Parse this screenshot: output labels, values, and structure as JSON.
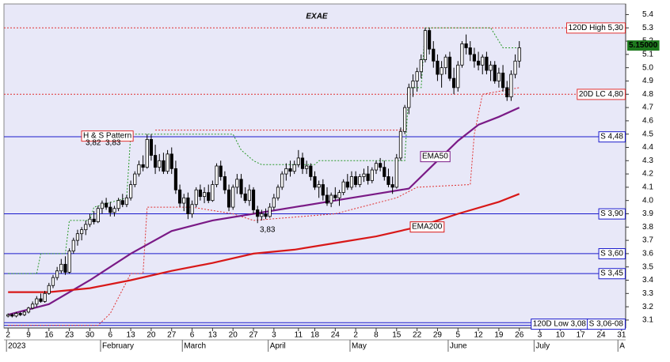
{
  "chart_data": {
    "type": "candlestick",
    "title": "EXAE",
    "title_color": "#1e9e1e",
    "background": "#e8e8f8",
    "up_color": "#ffffff",
    "down_color": "#000000",
    "xlim": [
      -1,
      151
    ],
    "ylim": [
      3.04,
      5.48
    ],
    "yticks": [
      3.1,
      3.2,
      3.3,
      3.4,
      3.5,
      3.6,
      3.7,
      3.8,
      3.9,
      {
        "value": 4,
        "label": "4.0"
      },
      4.1,
      4.2,
      4.3,
      4.4,
      4.5,
      4.6,
      4.7,
      4.8,
      4.9,
      {
        "value": 5,
        "label": "5.0"
      },
      5.1,
      5.2,
      5.3,
      5.4
    ],
    "xticks": [
      {
        "value": 0,
        "label": "2"
      },
      {
        "value": 5,
        "label": "9"
      },
      {
        "value": 10,
        "label": "16"
      },
      {
        "value": 15,
        "label": "23"
      },
      {
        "value": 20,
        "label": "30"
      },
      {
        "value": 25,
        "label": "6"
      },
      {
        "value": 30,
        "label": "13"
      },
      {
        "value": 35,
        "label": "20"
      },
      {
        "value": 40,
        "label": "27"
      },
      {
        "value": 45,
        "label": "6"
      },
      {
        "value": 50,
        "label": "13"
      },
      {
        "value": 55,
        "label": "20"
      },
      {
        "value": 60,
        "label": "27"
      },
      {
        "value": 65,
        "label": "3"
      },
      {
        "value": 71,
        "label": "11"
      },
      {
        "value": 75,
        "label": "18"
      },
      {
        "value": 80,
        "label": "24"
      },
      {
        "value": 85,
        "label": "2"
      },
      {
        "value": 90,
        "label": "8"
      },
      {
        "value": 95,
        "label": "15"
      },
      {
        "value": 100,
        "label": "22"
      },
      {
        "value": 105,
        "label": "29"
      },
      {
        "value": 110,
        "label": "5"
      },
      {
        "value": 115,
        "label": "12"
      },
      {
        "value": 120,
        "label": "19"
      },
      {
        "value": 125,
        "label": "26"
      },
      {
        "value": 130,
        "label": "3"
      },
      {
        "value": 135,
        "label": "10"
      },
      {
        "value": 140,
        "label": "17"
      },
      {
        "value": 145,
        "label": "24"
      },
      {
        "value": 150,
        "label": "31"
      }
    ],
    "month_labels": [
      {
        "value": 0,
        "label": "2023"
      },
      {
        "value": 23,
        "label": "February"
      },
      {
        "value": 43,
        "label": "March"
      },
      {
        "value": 64,
        "label": "April"
      },
      {
        "value": 84,
        "label": "May"
      },
      {
        "value": 108,
        "label": "June"
      },
      {
        "value": 129,
        "label": "July"
      },
      {
        "value": 149.5,
        "label": "A"
      }
    ],
    "ohlc": [
      [
        3.13,
        3.15,
        3.12,
        3.14
      ],
      [
        3.14,
        3.15,
        3.12,
        3.13
      ],
      [
        3.13,
        3.16,
        3.12,
        3.15
      ],
      [
        3.15,
        3.16,
        3.13,
        3.14
      ],
      [
        3.14,
        3.17,
        3.13,
        3.16
      ],
      [
        3.16,
        3.2,
        3.15,
        3.19
      ],
      [
        3.19,
        3.24,
        3.18,
        3.22
      ],
      [
        3.22,
        3.28,
        3.2,
        3.26
      ],
      [
        3.26,
        3.3,
        3.23,
        3.24
      ],
      [
        3.24,
        3.32,
        3.23,
        3.3
      ],
      [
        3.3,
        3.38,
        3.29,
        3.36
      ],
      [
        3.36,
        3.44,
        3.34,
        3.42
      ],
      [
        3.42,
        3.5,
        3.4,
        3.47
      ],
      [
        3.47,
        3.56,
        3.45,
        3.52
      ],
      [
        3.52,
        3.58,
        3.44,
        3.46
      ],
      [
        3.46,
        3.64,
        3.45,
        3.62
      ],
      [
        3.62,
        3.72,
        3.6,
        3.7
      ],
      [
        3.7,
        3.78,
        3.66,
        3.75
      ],
      [
        3.75,
        3.8,
        3.7,
        3.78
      ],
      [
        3.78,
        3.85,
        3.74,
        3.82
      ],
      [
        3.82,
        3.9,
        3.8,
        3.86
      ],
      [
        3.86,
        3.92,
        3.82,
        3.84
      ],
      [
        3.84,
        3.96,
        3.83,
        3.94
      ],
      [
        3.94,
        4.0,
        3.9,
        3.98
      ],
      [
        3.98,
        4.02,
        3.93,
        3.95
      ],
      [
        3.95,
        3.99,
        3.88,
        3.91
      ],
      [
        3.91,
        3.96,
        3.88,
        3.94
      ],
      [
        3.94,
        4.02,
        3.92,
        4.0
      ],
      [
        4.0,
        4.05,
        3.95,
        3.97
      ],
      [
        3.97,
        4.04,
        3.95,
        4.02
      ],
      [
        4.02,
        4.15,
        4.0,
        4.12
      ],
      [
        4.12,
        4.22,
        4.1,
        4.2
      ],
      [
        4.2,
        4.3,
        4.18,
        4.27
      ],
      [
        4.27,
        4.34,
        4.22,
        4.25
      ],
      [
        4.25,
        4.5,
        4.24,
        4.46
      ],
      [
        4.46,
        4.5,
        4.3,
        4.34
      ],
      [
        4.34,
        4.42,
        4.2,
        4.25
      ],
      [
        4.25,
        4.35,
        4.22,
        4.3
      ],
      [
        4.3,
        4.36,
        4.2,
        4.22
      ],
      [
        4.22,
        4.38,
        4.2,
        4.35
      ],
      [
        4.35,
        4.4,
        4.2,
        4.24
      ],
      [
        4.24,
        4.3,
        4.05,
        4.08
      ],
      [
        4.08,
        4.12,
        3.95,
        3.98
      ],
      [
        3.98,
        4.05,
        3.92,
        4.02
      ],
      [
        4.02,
        4.06,
        3.86,
        3.9
      ],
      [
        3.9,
        4.0,
        3.87,
        3.97
      ],
      [
        3.97,
        4.1,
        3.95,
        4.08
      ],
      [
        4.08,
        4.12,
        4.0,
        4.03
      ],
      [
        4.03,
        4.1,
        3.98,
        4.06
      ],
      [
        4.06,
        4.12,
        3.98,
        4.0
      ],
      [
        4.0,
        4.15,
        3.99,
        4.12
      ],
      [
        4.12,
        4.28,
        4.1,
        4.26
      ],
      [
        4.26,
        4.3,
        4.15,
        4.18
      ],
      [
        4.18,
        4.22,
        4.05,
        4.08
      ],
      [
        4.08,
        4.12,
        3.92,
        3.95
      ],
      [
        3.95,
        4.12,
        3.93,
        4.1
      ],
      [
        4.1,
        4.2,
        4.05,
        4.16
      ],
      [
        4.16,
        4.2,
        4.02,
        4.05
      ],
      [
        4.05,
        4.1,
        3.98,
        4.0
      ],
      [
        4.0,
        4.12,
        3.96,
        4.08
      ],
      [
        4.08,
        4.1,
        3.9,
        3.93
      ],
      [
        3.93,
        3.96,
        3.83,
        3.88
      ],
      [
        3.88,
        3.93,
        3.85,
        3.9
      ],
      [
        3.9,
        3.94,
        3.86,
        3.88
      ],
      [
        3.88,
        3.98,
        3.87,
        3.95
      ],
      [
        3.95,
        4.05,
        3.93,
        4.02
      ],
      [
        4.02,
        4.12,
        4.0,
        4.1
      ],
      [
        4.1,
        4.22,
        4.08,
        4.2
      ],
      [
        4.2,
        4.28,
        4.15,
        4.24
      ],
      [
        4.24,
        4.3,
        4.18,
        4.22
      ],
      [
        4.22,
        4.3,
        4.2,
        4.27
      ],
      [
        4.27,
        4.38,
        4.25,
        4.32
      ],
      [
        4.32,
        4.36,
        4.2,
        4.24
      ],
      [
        4.24,
        4.3,
        4.2,
        4.26
      ],
      [
        4.26,
        4.28,
        4.15,
        4.18
      ],
      [
        4.18,
        4.22,
        4.08,
        4.1
      ],
      [
        4.1,
        4.15,
        4.02,
        4.12
      ],
      [
        4.12,
        4.16,
        4.0,
        4.04
      ],
      [
        4.04,
        4.1,
        3.96,
        3.98
      ],
      [
        3.98,
        4.06,
        3.95,
        4.04
      ],
      [
        4.04,
        4.1,
        4.0,
        4.02
      ],
      [
        4.02,
        4.08,
        3.96,
        4.06
      ],
      [
        4.06,
        4.16,
        4.04,
        4.14
      ],
      [
        4.14,
        4.2,
        4.08,
        4.1
      ],
      [
        4.1,
        4.22,
        4.08,
        4.18
      ],
      [
        4.18,
        4.22,
        4.1,
        4.12
      ],
      [
        4.12,
        4.2,
        4.1,
        4.18
      ],
      [
        4.18,
        4.24,
        4.14,
        4.2
      ],
      [
        4.2,
        4.26,
        4.12,
        4.15
      ],
      [
        4.15,
        4.25,
        4.13,
        4.23
      ],
      [
        4.23,
        4.3,
        4.2,
        4.28
      ],
      [
        4.28,
        4.32,
        4.22,
        4.25
      ],
      [
        4.25,
        4.3,
        4.15,
        4.18
      ],
      [
        4.18,
        4.24,
        4.1,
        4.12
      ],
      [
        4.12,
        4.18,
        4.05,
        4.1
      ],
      [
        4.1,
        4.35,
        4.09,
        4.32
      ],
      [
        4.32,
        4.55,
        4.3,
        4.52
      ],
      [
        4.52,
        4.72,
        4.5,
        4.7
      ],
      [
        4.7,
        4.88,
        4.65,
        4.85
      ],
      [
        4.85,
        4.95,
        4.78,
        4.9
      ],
      [
        4.9,
        5.0,
        4.82,
        4.97
      ],
      [
        4.97,
        5.1,
        4.92,
        5.06
      ],
      [
        5.06,
        5.3,
        5.04,
        5.28
      ],
      [
        5.28,
        5.3,
        5.1,
        5.14
      ],
      [
        5.14,
        5.2,
        5.0,
        5.05
      ],
      [
        5.05,
        5.1,
        4.9,
        4.95
      ],
      [
        4.95,
        5.05,
        4.85,
        5.0
      ],
      [
        5.0,
        5.1,
        4.95,
        5.08
      ],
      [
        5.08,
        5.12,
        4.9,
        4.92
      ],
      [
        4.92,
        5.0,
        4.8,
        4.85
      ],
      [
        4.85,
        5.05,
        4.82,
        5.02
      ],
      [
        5.02,
        5.2,
        5.0,
        5.18
      ],
      [
        5.18,
        5.25,
        5.1,
        5.15
      ],
      [
        5.15,
        5.2,
        5.05,
        5.1
      ],
      [
        5.1,
        5.15,
        5.0,
        5.05
      ],
      [
        5.05,
        5.12,
        4.98,
        5.02
      ],
      [
        5.02,
        5.1,
        4.95,
        5.08
      ],
      [
        5.08,
        5.12,
        4.95,
        4.98
      ],
      [
        4.98,
        5.05,
        4.9,
        5.02
      ],
      [
        5.02,
        5.05,
        4.88,
        4.9
      ],
      [
        4.9,
        5.0,
        4.85,
        4.96
      ],
      [
        4.96,
        5.02,
        4.82,
        4.85
      ],
      [
        4.85,
        4.9,
        4.75,
        4.78
      ],
      [
        4.78,
        4.98,
        4.75,
        4.95
      ],
      [
        4.95,
        5.1,
        4.92,
        5.05
      ],
      [
        5.05,
        5.2,
        5.0,
        5.15
      ]
    ],
    "lines": [
      {
        "name": "EMA50",
        "color": "#7a1a86",
        "x": [
          0,
          10,
          20,
          30,
          40,
          50,
          60,
          70,
          80,
          90,
          98,
          105,
          110,
          115,
          120,
          125
        ],
        "values": [
          3.14,
          3.22,
          3.4,
          3.6,
          3.77,
          3.85,
          3.9,
          3.95,
          4.0,
          4.05,
          4.09,
          4.3,
          4.45,
          4.57,
          4.63,
          4.7
        ]
      },
      {
        "name": "EMA200",
        "color": "#d81818",
        "x": [
          0,
          10,
          20,
          30,
          40,
          50,
          60,
          70,
          80,
          90,
          100,
          110,
          120,
          125
        ],
        "values": [
          3.31,
          3.31,
          3.34,
          3.4,
          3.47,
          3.53,
          3.6,
          3.63,
          3.68,
          3.73,
          3.8,
          3.9,
          3.99,
          4.05
        ]
      }
    ],
    "stops": [
      {
        "color": "#2a9a2a",
        "x": [
          0,
          7,
          8,
          14,
          15,
          20,
          21,
          29,
          30,
          55,
          57,
          60,
          62,
          75,
          76,
          97,
          98,
          101,
          102,
          118,
          121,
          125
        ],
        "values": [
          3.45,
          3.45,
          3.6,
          3.6,
          3.85,
          3.85,
          3.95,
          4.02,
          4.5,
          4.5,
          4.38,
          4.3,
          4.27,
          4.27,
          4.3,
          4.3,
          4.85,
          4.85,
          5.3,
          5.3,
          5.15,
          5.15
        ]
      },
      {
        "color": "#e03030",
        "x": [
          0,
          22,
          25,
          30,
          33,
          34,
          45,
          55,
          60,
          80,
          90,
          95,
          100,
          113,
          114,
          116,
          125
        ],
        "values": [
          3.06,
          3.06,
          3.15,
          3.45,
          3.45,
          3.95,
          3.95,
          3.9,
          3.85,
          3.9,
          3.98,
          4.02,
          4.1,
          4.12,
          4.5,
          4.8,
          4.85
        ]
      },
      {
        "color": "#e03030",
        "x": [
          36,
          97
        ],
        "values": [
          4.53,
          4.53
        ]
      }
    ],
    "levels": [
      {
        "value": 5.3,
        "label": "120D High 5,30",
        "color": "#e03030",
        "style": "dotted"
      },
      {
        "value": 4.8,
        "label": "20D LC 4,80",
        "color": "#e03030",
        "style": "dotted"
      },
      {
        "value": 4.48,
        "label": "S 4,48",
        "color": "#1a1acc",
        "style": "solid"
      },
      {
        "value": 3.9,
        "label": "S 3,90",
        "color": "#1a1acc",
        "style": "solid"
      },
      {
        "value": 3.6,
        "label": "S 3,60",
        "color": "#1a1acc",
        "style": "solid"
      },
      {
        "value": 3.45,
        "label": "S 3,45",
        "color": "#1a1acc",
        "style": "solid"
      },
      {
        "value": 3.08,
        "label": "120D Low 3,08",
        "color": "#1a1acc",
        "style": "solid"
      },
      {
        "value": 3.06,
        "label": "S 3,06-08",
        "color": "#1a1acc",
        "style": "solid"
      }
    ],
    "annotations": [
      "H & S Pattern",
      "3,82",
      "3,83",
      "3,83"
    ],
    "annotation_color": "#e03030",
    "last_price": {
      "value": 5.15,
      "label": "5.15000"
    }
  }
}
